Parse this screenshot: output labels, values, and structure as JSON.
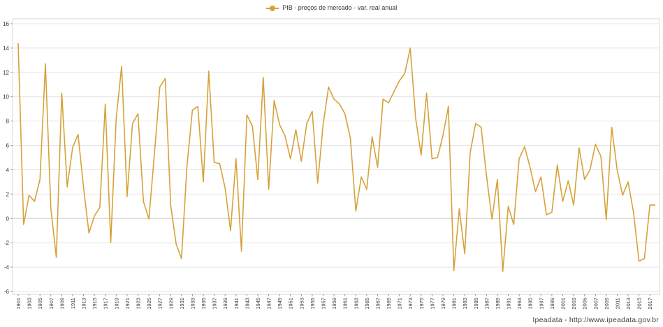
{
  "legend": {
    "label": "PIB - preços de mercado - var. real anual"
  },
  "credit": "Ipeadata - http://www.ipeadata.gov.br",
  "colors": {
    "series": "#d6a23a",
    "grid": "#e4e4e4",
    "axis": "#999999",
    "text": "#333333"
  },
  "chart_data": {
    "type": "line",
    "xlabel": "",
    "ylabel": "",
    "ylim": [
      -6,
      16
    ],
    "yticks": [
      -6,
      -4,
      -2,
      0,
      2,
      4,
      6,
      8,
      10,
      12,
      14,
      16
    ],
    "xlim": [
      1901,
      2018
    ],
    "xtick_labels": [
      "1901",
      "1903",
      "1905",
      "1907",
      "1909",
      "1911",
      "1913",
      "1915",
      "1917",
      "1919",
      "1921",
      "1923",
      "1925",
      "1927",
      "1929",
      "1931",
      "1933",
      "1935",
      "1937",
      "1939",
      "1941",
      "1943",
      "1945",
      "1947",
      "1949",
      "1951",
      "1953",
      "1955",
      "1957",
      "1959",
      "1961",
      "1963",
      "1965",
      "1967",
      "1969",
      "1971",
      "1973",
      "1975",
      "1977",
      "1979",
      "1981",
      "1983",
      "1985",
      "1987",
      "1989",
      "1991",
      "1993",
      "1995",
      "1997",
      "1999",
      "2001",
      "2003",
      "2005",
      "2007",
      "2009",
      "2011",
      "2013",
      "2015",
      "2017"
    ],
    "grid": true,
    "legend_position": "top-center",
    "series": [
      {
        "name": "PIB - preços de mercado - var. real anual",
        "x": [
          1901,
          1902,
          1903,
          1904,
          1905,
          1906,
          1907,
          1908,
          1909,
          1910,
          1911,
          1912,
          1913,
          1914,
          1915,
          1916,
          1917,
          1918,
          1919,
          1920,
          1921,
          1922,
          1923,
          1924,
          1925,
          1926,
          1927,
          1928,
          1929,
          1930,
          1931,
          1932,
          1933,
          1934,
          1935,
          1936,
          1937,
          1938,
          1939,
          1940,
          1941,
          1942,
          1943,
          1944,
          1945,
          1946,
          1947,
          1948,
          1949,
          1950,
          1951,
          1952,
          1953,
          1954,
          1955,
          1956,
          1957,
          1958,
          1959,
          1960,
          1961,
          1962,
          1963,
          1964,
          1965,
          1966,
          1967,
          1968,
          1969,
          1970,
          1971,
          1972,
          1973,
          1974,
          1975,
          1976,
          1977,
          1978,
          1979,
          1980,
          1981,
          1982,
          1983,
          1984,
          1985,
          1986,
          1987,
          1988,
          1989,
          1990,
          1991,
          1992,
          1993,
          1994,
          1995,
          1996,
          1997,
          1998,
          1999,
          2000,
          2001,
          2002,
          2003,
          2004,
          2005,
          2006,
          2007,
          2008,
          2009,
          2010,
          2011,
          2012,
          2013,
          2014,
          2015,
          2016,
          2017,
          2018
        ],
        "values": [
          14.4,
          -0.5,
          1.9,
          1.4,
          3.2,
          12.7,
          0.8,
          -3.2,
          10.3,
          2.6,
          5.8,
          6.9,
          2.6,
          -1.2,
          0.2,
          0.9,
          9.4,
          -2.0,
          8.2,
          12.5,
          1.8,
          7.8,
          8.6,
          1.4,
          -0.04,
          5.2,
          10.8,
          11.5,
          1.1,
          -2.1,
          -3.3,
          4.3,
          8.9,
          9.2,
          3.0,
          12.1,
          4.6,
          4.5,
          2.5,
          -1.0,
          4.9,
          -2.7,
          8.5,
          7.6,
          3.2,
          11.6,
          2.4,
          9.7,
          7.7,
          6.8,
          4.9,
          7.3,
          4.7,
          7.8,
          8.8,
          2.9,
          7.7,
          10.8,
          9.8,
          9.4,
          8.6,
          6.6,
          0.6,
          3.4,
          2.4,
          6.7,
          4.2,
          9.8,
          9.5,
          10.4,
          11.3,
          11.9,
          14.0,
          8.2,
          5.2,
          10.3,
          4.9,
          5.0,
          6.8,
          9.2,
          -4.3,
          0.8,
          -2.9,
          5.4,
          7.8,
          7.5,
          3.5,
          -0.06,
          3.2,
          -4.35,
          1.0,
          -0.5,
          4.9,
          5.9,
          4.2,
          2.2,
          3.4,
          0.3,
          0.5,
          4.4,
          1.4,
          3.1,
          1.1,
          5.8,
          3.2,
          4.0,
          6.1,
          5.1,
          -0.1,
          7.5,
          4.0,
          1.9,
          3.0,
          0.5,
          -3.5,
          -3.3,
          1.1,
          1.1
        ]
      }
    ]
  }
}
